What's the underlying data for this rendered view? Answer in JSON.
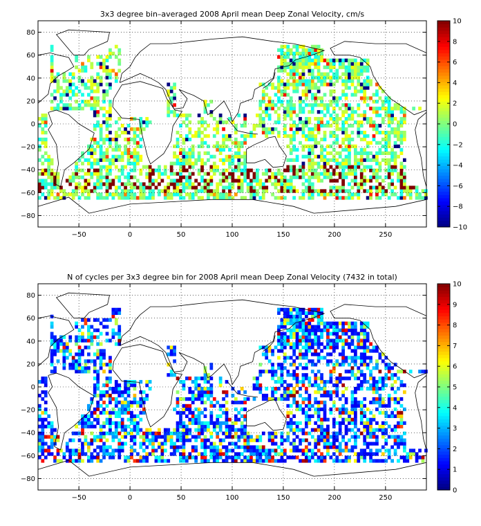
{
  "chart_data": [
    {
      "type": "heatmap",
      "title": "3x3 degree bin–averaged 2008 April mean Deep Zonal Velocity, cm/s",
      "xlabel": "",
      "ylabel": "",
      "xlim": [
        -90,
        290
      ],
      "ylim": [
        -90,
        90
      ],
      "xticks": [
        -50,
        0,
        50,
        100,
        150,
        200,
        250
      ],
      "yticks": [
        -80,
        -60,
        -40,
        -20,
        0,
        20,
        40,
        60,
        80
      ],
      "grid": true,
      "bin_size_deg": 3,
      "colorbar": {
        "min": -10,
        "max": 10,
        "ticks": [
          -10,
          -8,
          -6,
          -4,
          -2,
          0,
          2,
          4,
          6,
          8,
          10
        ],
        "colormap": "jet"
      },
      "values": "per-bin mean deep zonal velocity over ocean grid cells; mostly -2..2 cm/s with strong eastward (~10) bands near 40S-60S and scattered strong westward (~-10) bins"
    },
    {
      "type": "heatmap",
      "title": "N of cycles per 3x3 degree bin for 2008 April mean Deep Zonal Velocity (7432 in total)",
      "xlabel": "",
      "ylabel": "",
      "xlim": [
        -90,
        290
      ],
      "ylim": [
        -90,
        90
      ],
      "xticks": [
        -50,
        0,
        50,
        100,
        150,
        200,
        250
      ],
      "yticks": [
        -80,
        -60,
        -40,
        -20,
        0,
        20,
        40,
        60,
        80
      ],
      "grid": true,
      "bin_size_deg": 3,
      "total_cycles": 7432,
      "colorbar": {
        "min": 0,
        "max": 10,
        "ticks": [
          0,
          1,
          2,
          3,
          4,
          5,
          6,
          7,
          8,
          9,
          10
        ],
        "colormap": "jet"
      },
      "values": "per-bin count of float cycles; mostly 1-4 with scattered higher counts in North Atlantic and North Pacific"
    }
  ]
}
